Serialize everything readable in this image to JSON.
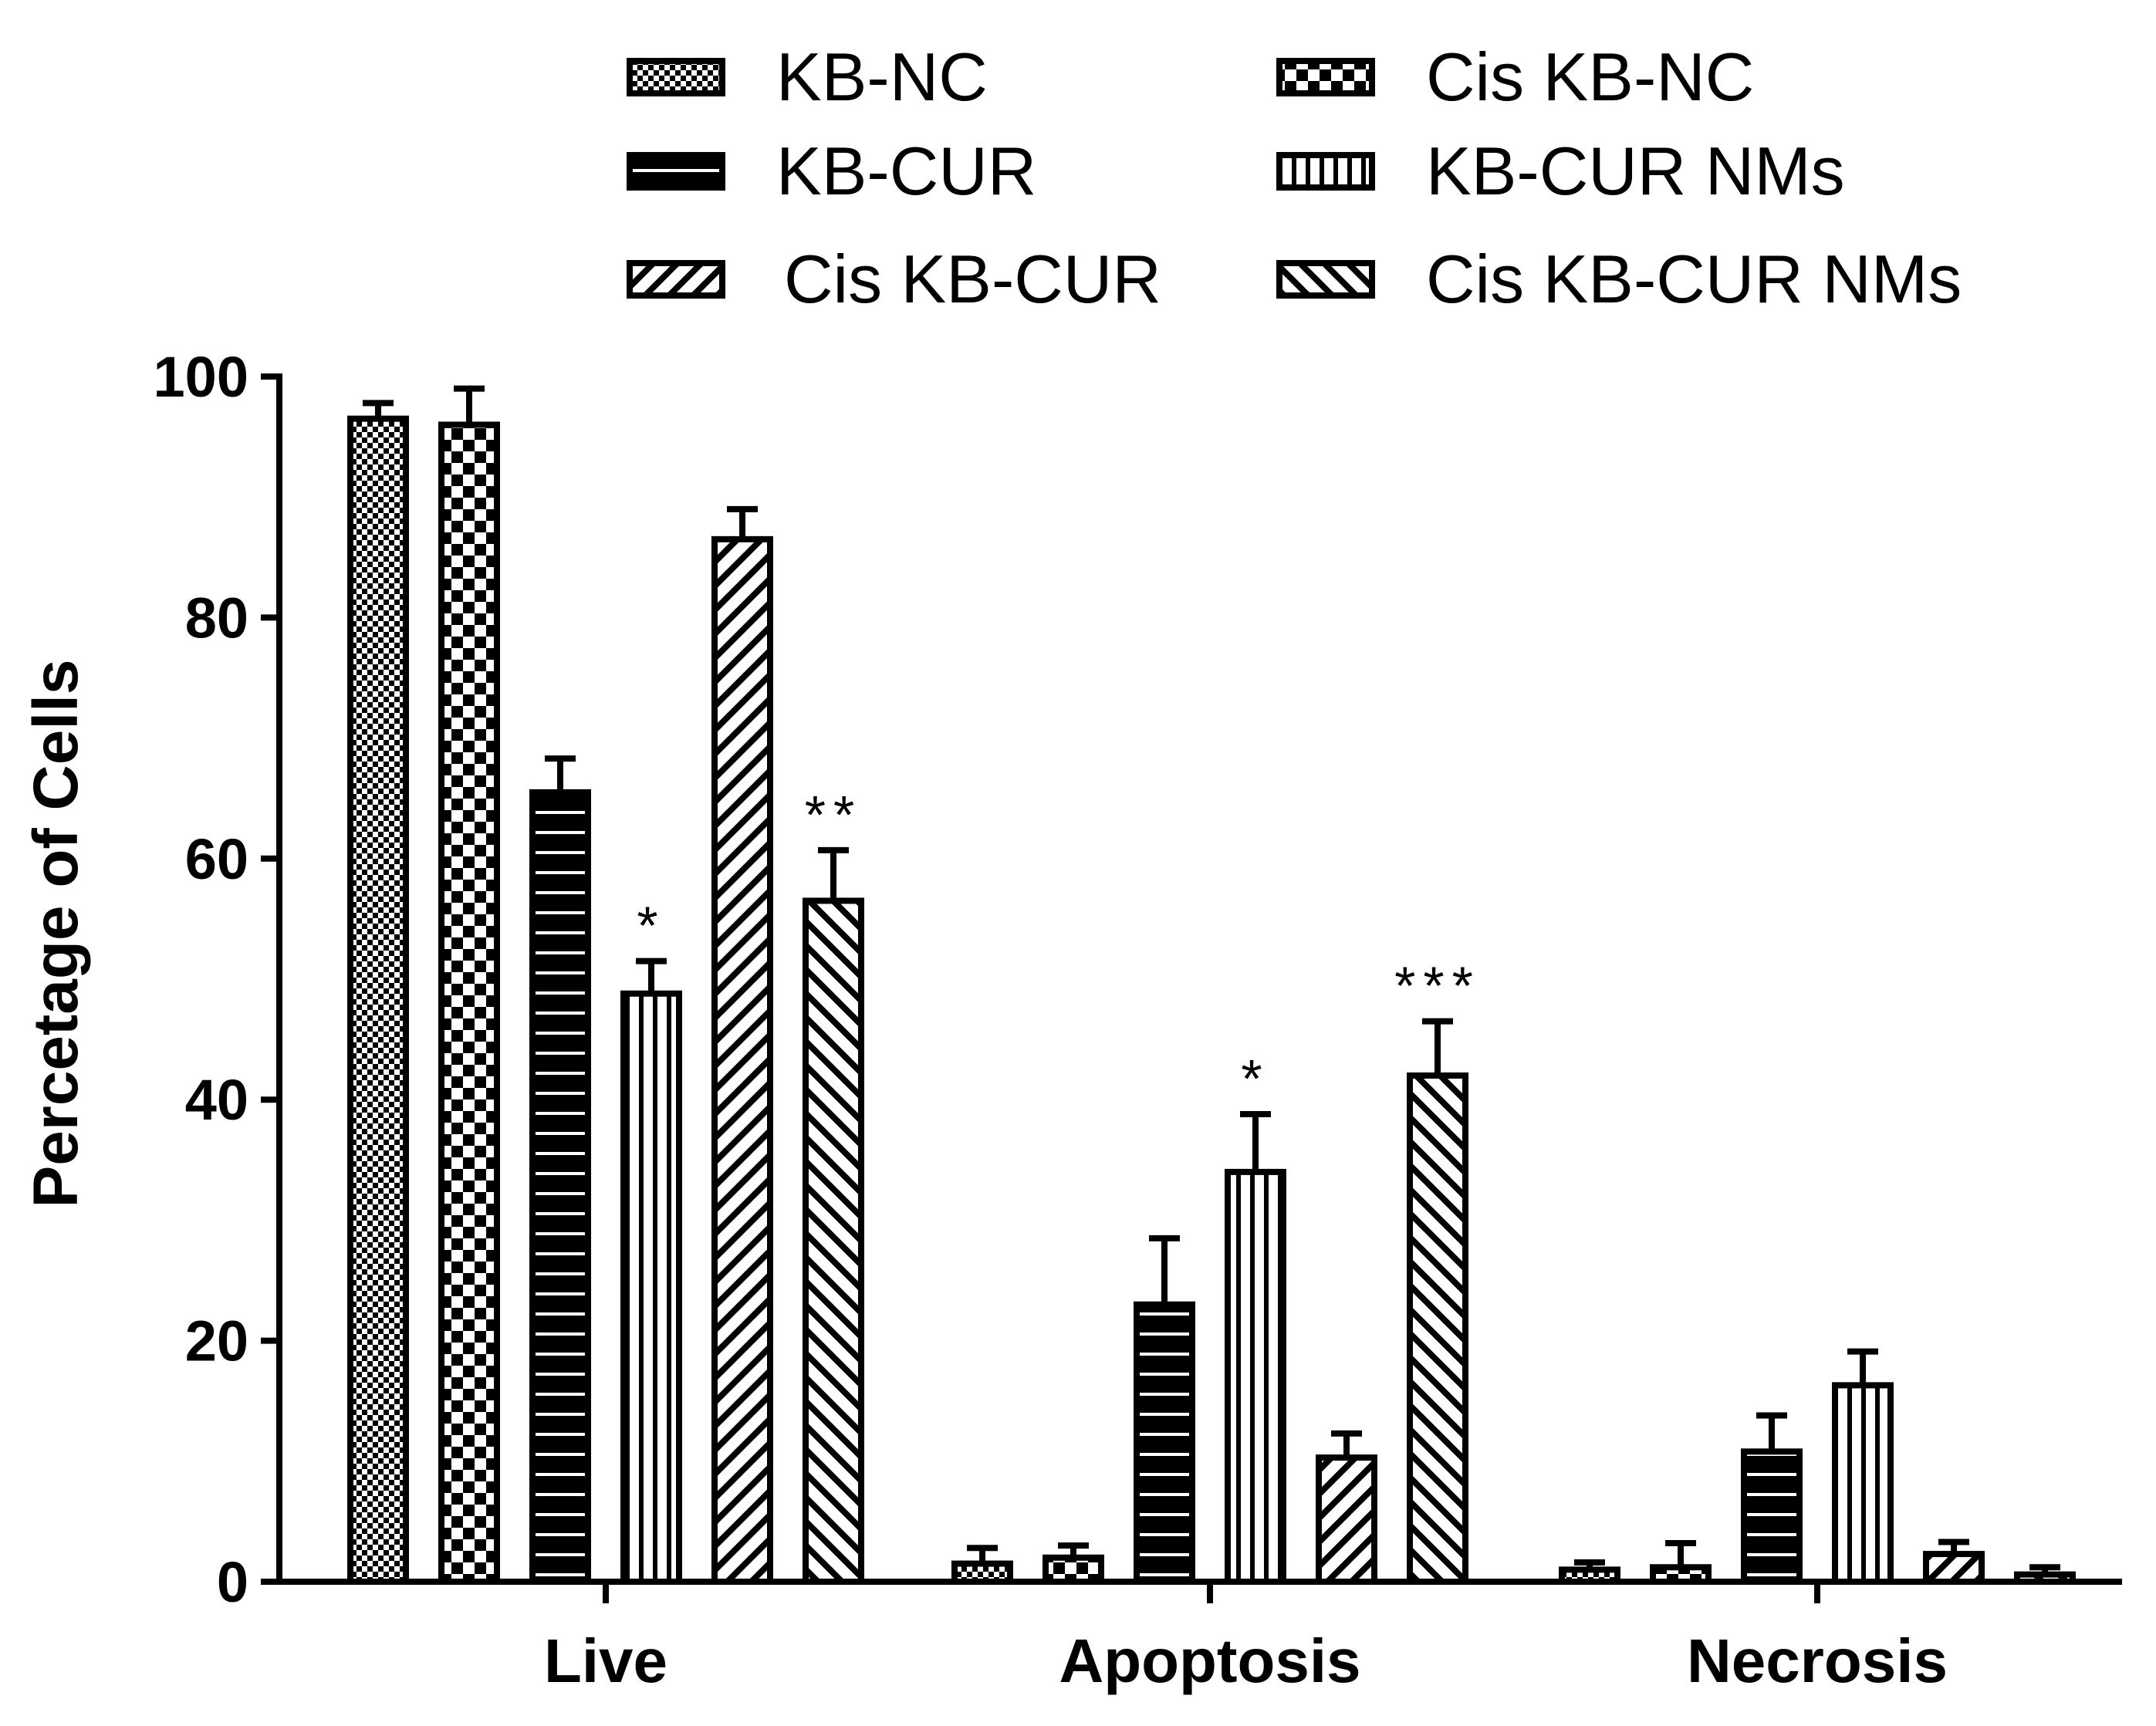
{
  "chart_data": {
    "type": "bar",
    "title": "",
    "xlabel": "",
    "ylabel": "Percetage of Cells",
    "ylim": [
      0,
      100
    ],
    "yticks": [
      0,
      20,
      40,
      60,
      80,
      100
    ],
    "categories": [
      "Live",
      "Apoptosis",
      "Necrosis"
    ],
    "series": [
      {
        "name": "KB-NC",
        "pattern": "fine-check",
        "values": [
          96.5,
          1.5,
          1.0
        ],
        "errors": [
          1.3,
          1.3,
          0.6
        ]
      },
      {
        "name": "Cis KB-NC",
        "pattern": "coarse-check",
        "values": [
          96.0,
          2.0,
          1.2
        ],
        "errors": [
          3.0,
          1.0,
          2.0
        ]
      },
      {
        "name": "KB-CUR",
        "pattern": "horizontal-lines",
        "values": [
          65.5,
          23.0,
          10.8
        ],
        "errors": [
          2.8,
          5.5,
          3.0
        ]
      },
      {
        "name": "KB-CUR NMs",
        "pattern": "vertical-lines",
        "values": [
          48.8,
          34.0,
          16.3
        ],
        "errors": [
          2.7,
          4.8,
          2.8
        ]
      },
      {
        "name": "Cis KB-CUR",
        "pattern": "forward-diagonal",
        "values": [
          86.5,
          10.3,
          2.3
        ],
        "errors": [
          2.5,
          2.0,
          1.0
        ]
      },
      {
        "name": "Cis KB-CUR NMs",
        "pattern": "back-diagonal",
        "values": [
          56.5,
          42.0,
          0.6
        ],
        "errors": [
          4.2,
          4.5,
          0.6
        ]
      }
    ],
    "annotations": [
      {
        "category": "Live",
        "series": "KB-CUR NMs",
        "text": "*"
      },
      {
        "category": "Live",
        "series": "Cis KB-CUR NMs",
        "text": "**"
      },
      {
        "category": "Apoptosis",
        "series": "KB-CUR NMs",
        "text": "*"
      },
      {
        "category": "Apoptosis",
        "series": "Cis KB-CUR NMs",
        "text": "***"
      }
    ],
    "legend": {
      "placement": "top",
      "order": [
        "KB-NC",
        "Cis KB-NC",
        "KB-CUR",
        "KB-CUR NMs",
        "Cis KB-CUR",
        "Cis KB-CUR NMs"
      ]
    },
    "grid": false
  }
}
